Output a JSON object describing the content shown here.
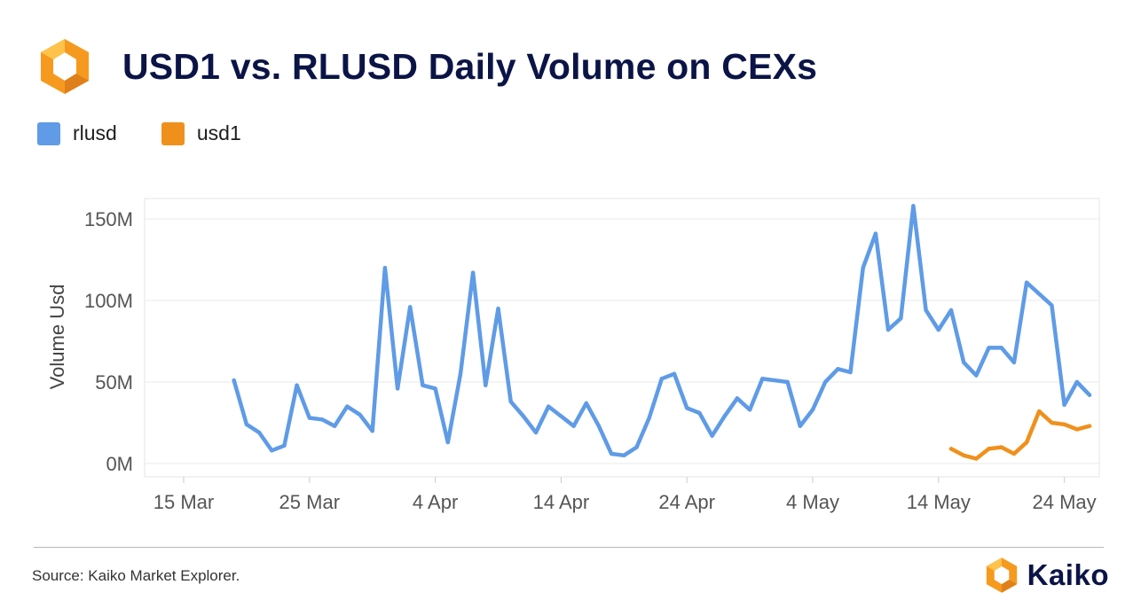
{
  "header": {
    "title": "USD1 vs. RLUSD Daily Volume on CEXs"
  },
  "legend": [
    {
      "label": "rlusd",
      "color": "#5f9be6"
    },
    {
      "label": "usd1",
      "color": "#f0901c"
    }
  ],
  "footer": {
    "source": "Source: Kaiko Market Explorer.",
    "brand": "Kaiko"
  },
  "colors": {
    "title": "#0b1446",
    "logo_orange": "#f59a1f",
    "logo_orange_light": "#ffc24a"
  },
  "chart_data": {
    "type": "line",
    "title": "USD1 vs. RLUSD Daily Volume on CEXs",
    "xlabel": "",
    "ylabel": "Volume Usd",
    "ylim": [
      0,
      160000000
    ],
    "grid": true,
    "legend_position": "top-left",
    "x_ticks": [
      "15 Mar",
      "25 Mar",
      "4 Apr",
      "14 Apr",
      "24 Apr",
      "4 May",
      "14 May",
      "24 May"
    ],
    "x_tick_dates": [
      "2025-03-15",
      "2025-03-25",
      "2025-04-04",
      "2025-04-14",
      "2025-04-24",
      "2025-05-04",
      "2025-05-14",
      "2025-05-24"
    ],
    "y_ticks": [
      {
        "label": "0M",
        "value": 0
      },
      {
        "label": "50M",
        "value": 50000000
      },
      {
        "label": "100M",
        "value": 100000000
      },
      {
        "label": "150M",
        "value": 150000000
      }
    ],
    "series": [
      {
        "name": "rlusd",
        "color": "#5f9be6",
        "start_date": "2025-03-19",
        "values": [
          51000000,
          24000000,
          19000000,
          8000000,
          11000000,
          48000000,
          28000000,
          27000000,
          23000000,
          35000000,
          30000000,
          20000000,
          120000000,
          46000000,
          96000000,
          48000000,
          46000000,
          13000000,
          55000000,
          117000000,
          48000000,
          95000000,
          38000000,
          29000000,
          19000000,
          35000000,
          29000000,
          23000000,
          37000000,
          23000000,
          6000000,
          5000000,
          10000000,
          28000000,
          52000000,
          55000000,
          34000000,
          31000000,
          17000000,
          29000000,
          40000000,
          33000000,
          52000000,
          51000000,
          50000000,
          23000000,
          33000000,
          50000000,
          58000000,
          56000000,
          120000000,
          141000000,
          82000000,
          89000000,
          158000000,
          94000000,
          82000000,
          94000000,
          62000000,
          54000000,
          71000000,
          71000000,
          62000000,
          111000000,
          104000000,
          97000000,
          36000000,
          50000000,
          42000000
        ]
      },
      {
        "name": "usd1",
        "color": "#f0901c",
        "start_date": "2025-05-15",
        "values": [
          9000000,
          5000000,
          3000000,
          9000000,
          10000000,
          6000000,
          13000000,
          32000000,
          25000000,
          24000000,
          21000000,
          23000000
        ]
      }
    ]
  }
}
